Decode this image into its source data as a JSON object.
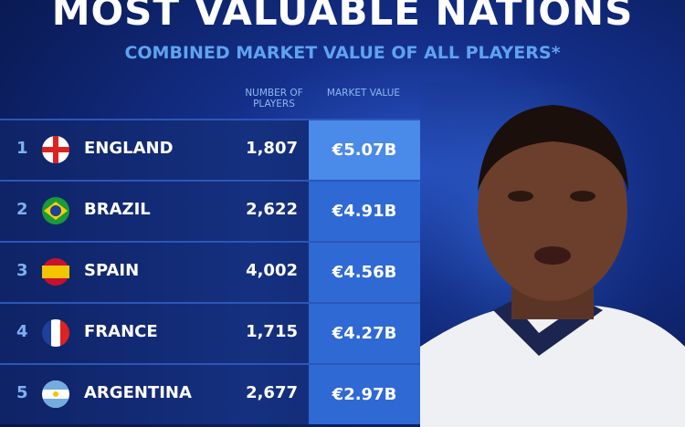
{
  "header": {
    "title": "MOST VALUABLE NATIONS",
    "subtitle": "COMBINED MARKET VALUE OF ALL PLAYERS*"
  },
  "table": {
    "columns": [
      "NUMBER OF PLAYERS",
      "MARKET VALUE"
    ],
    "rows": [
      [
        "1",
        "ENGLAND",
        "1,807",
        "€5.07B"
      ],
      [
        "2",
        "BRAZIL",
        "2,622",
        "€4.91B"
      ],
      [
        "3",
        "SPAIN",
        "4,002",
        "€4.56B"
      ],
      [
        "4",
        "FRANCE",
        "1,715",
        "€4.27B"
      ],
      [
        "5",
        "ARGENTINA",
        "2,677",
        "€2.97B"
      ]
    ]
  }
}
